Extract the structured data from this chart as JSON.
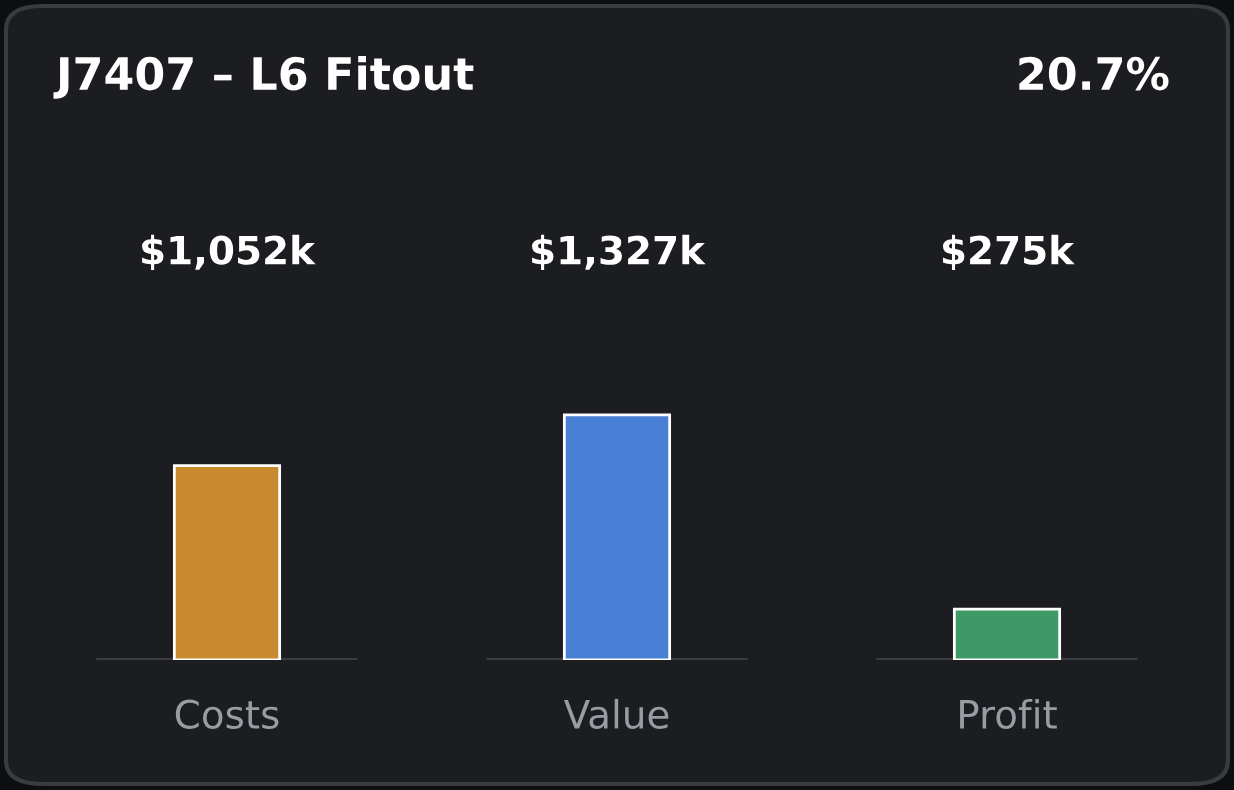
{
  "chart_data": {
    "type": "bar",
    "title": "J7407 – L6 Fitout",
    "annotations": [
      "20.7%"
    ],
    "categories": [
      "Costs",
      "Value",
      "Profit"
    ],
    "values": [
      1052,
      1327,
      275
    ],
    "colors": [
      "#c98a2e",
      "#4a7fd6",
      "#3d9a66"
    ],
    "value_labels": [
      "$1,052k",
      "$1,327k",
      "$275k"
    ],
    "tick_labels": "x"
  }
}
